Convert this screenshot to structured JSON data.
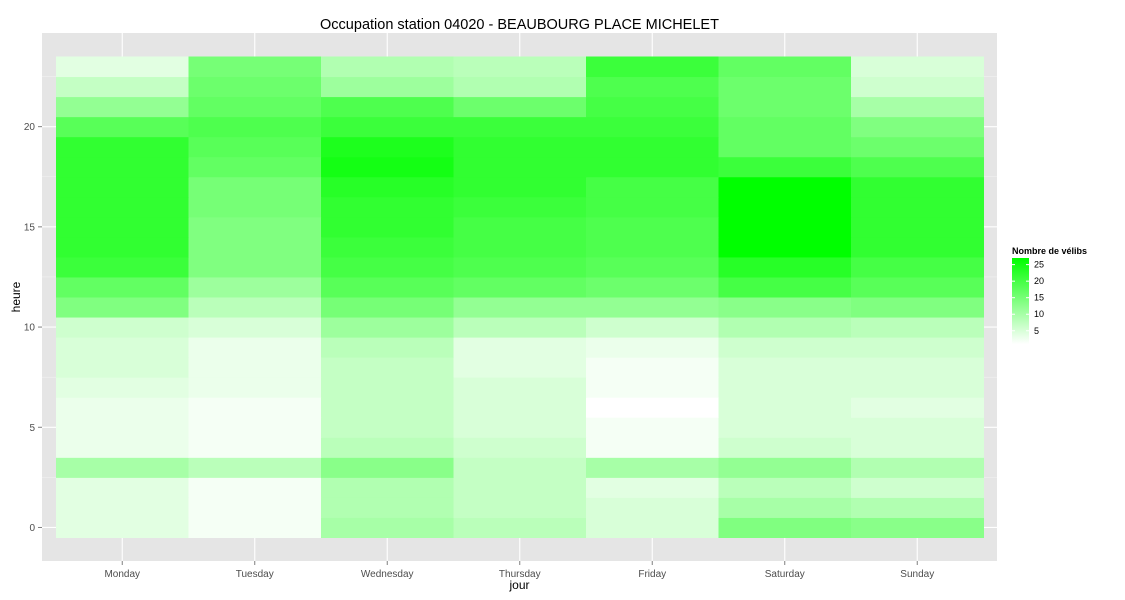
{
  "chart_data": {
    "type": "heatmap",
    "title": "Occupation station 04020 - BEAUBOURG PLACE MICHELET",
    "xlabel": "jour",
    "ylabel": "heure",
    "x": [
      "Monday",
      "Tuesday",
      "Wednesday",
      "Thursday",
      "Friday",
      "Saturday",
      "Sunday"
    ],
    "y": [
      0,
      1,
      2,
      3,
      4,
      5,
      6,
      7,
      8,
      9,
      10,
      11,
      12,
      13,
      14,
      15,
      16,
      17,
      18,
      19,
      20,
      21,
      22,
      23
    ],
    "y_ticks": [
      0,
      5,
      10,
      15,
      20
    ],
    "ylim": [
      -0.5,
      23.5
    ],
    "grid": true,
    "legend": {
      "title": "Nombre de vélibs",
      "position": "right",
      "ticks": [
        5,
        10,
        15,
        20,
        25
      ],
      "range": [
        1,
        27
      ],
      "color_low": "#ffffff",
      "color_high": "#00ff00"
    },
    "values": [
      [
        4,
        2,
        10,
        8,
        5,
        14,
        13
      ],
      [
        4,
        2,
        9,
        7,
        5,
        10,
        9
      ],
      [
        4,
        2,
        9,
        7,
        4,
        8,
        6
      ],
      [
        10,
        8,
        13,
        7,
        10,
        12,
        9
      ],
      [
        3,
        2,
        8,
        6,
        2,
        6,
        5
      ],
      [
        3,
        2,
        7,
        5,
        2,
        5,
        5
      ],
      [
        3,
        2,
        7,
        5,
        1,
        5,
        4
      ],
      [
        4,
        3,
        7,
        5,
        2,
        5,
        5
      ],
      [
        5,
        3,
        7,
        4,
        2,
        5,
        5
      ],
      [
        5,
        3,
        8,
        4,
        3,
        6,
        6
      ],
      [
        6,
        5,
        11,
        8,
        6,
        9,
        8
      ],
      [
        14,
        8,
        15,
        12,
        12,
        13,
        14
      ],
      [
        17,
        11,
        18,
        17,
        16,
        20,
        18
      ],
      [
        21,
        14,
        20,
        19,
        18,
        23,
        20
      ],
      [
        22,
        14,
        21,
        20,
        19,
        27,
        22
      ],
      [
        22,
        14,
        22,
        20,
        19,
        27,
        22
      ],
      [
        22,
        15,
        22,
        21,
        20,
        27,
        22
      ],
      [
        22,
        15,
        23,
        22,
        20,
        27,
        22
      ],
      [
        22,
        17,
        25,
        22,
        22,
        21,
        19
      ],
      [
        22,
        18,
        24,
        22,
        22,
        17,
        16
      ],
      [
        18,
        19,
        21,
        21,
        21,
        17,
        14
      ],
      [
        12,
        17,
        19,
        16,
        20,
        16,
        10
      ],
      [
        7,
        16,
        11,
        9,
        19,
        16,
        6
      ],
      [
        4,
        15,
        9,
        8,
        21,
        17,
        5
      ]
    ]
  }
}
